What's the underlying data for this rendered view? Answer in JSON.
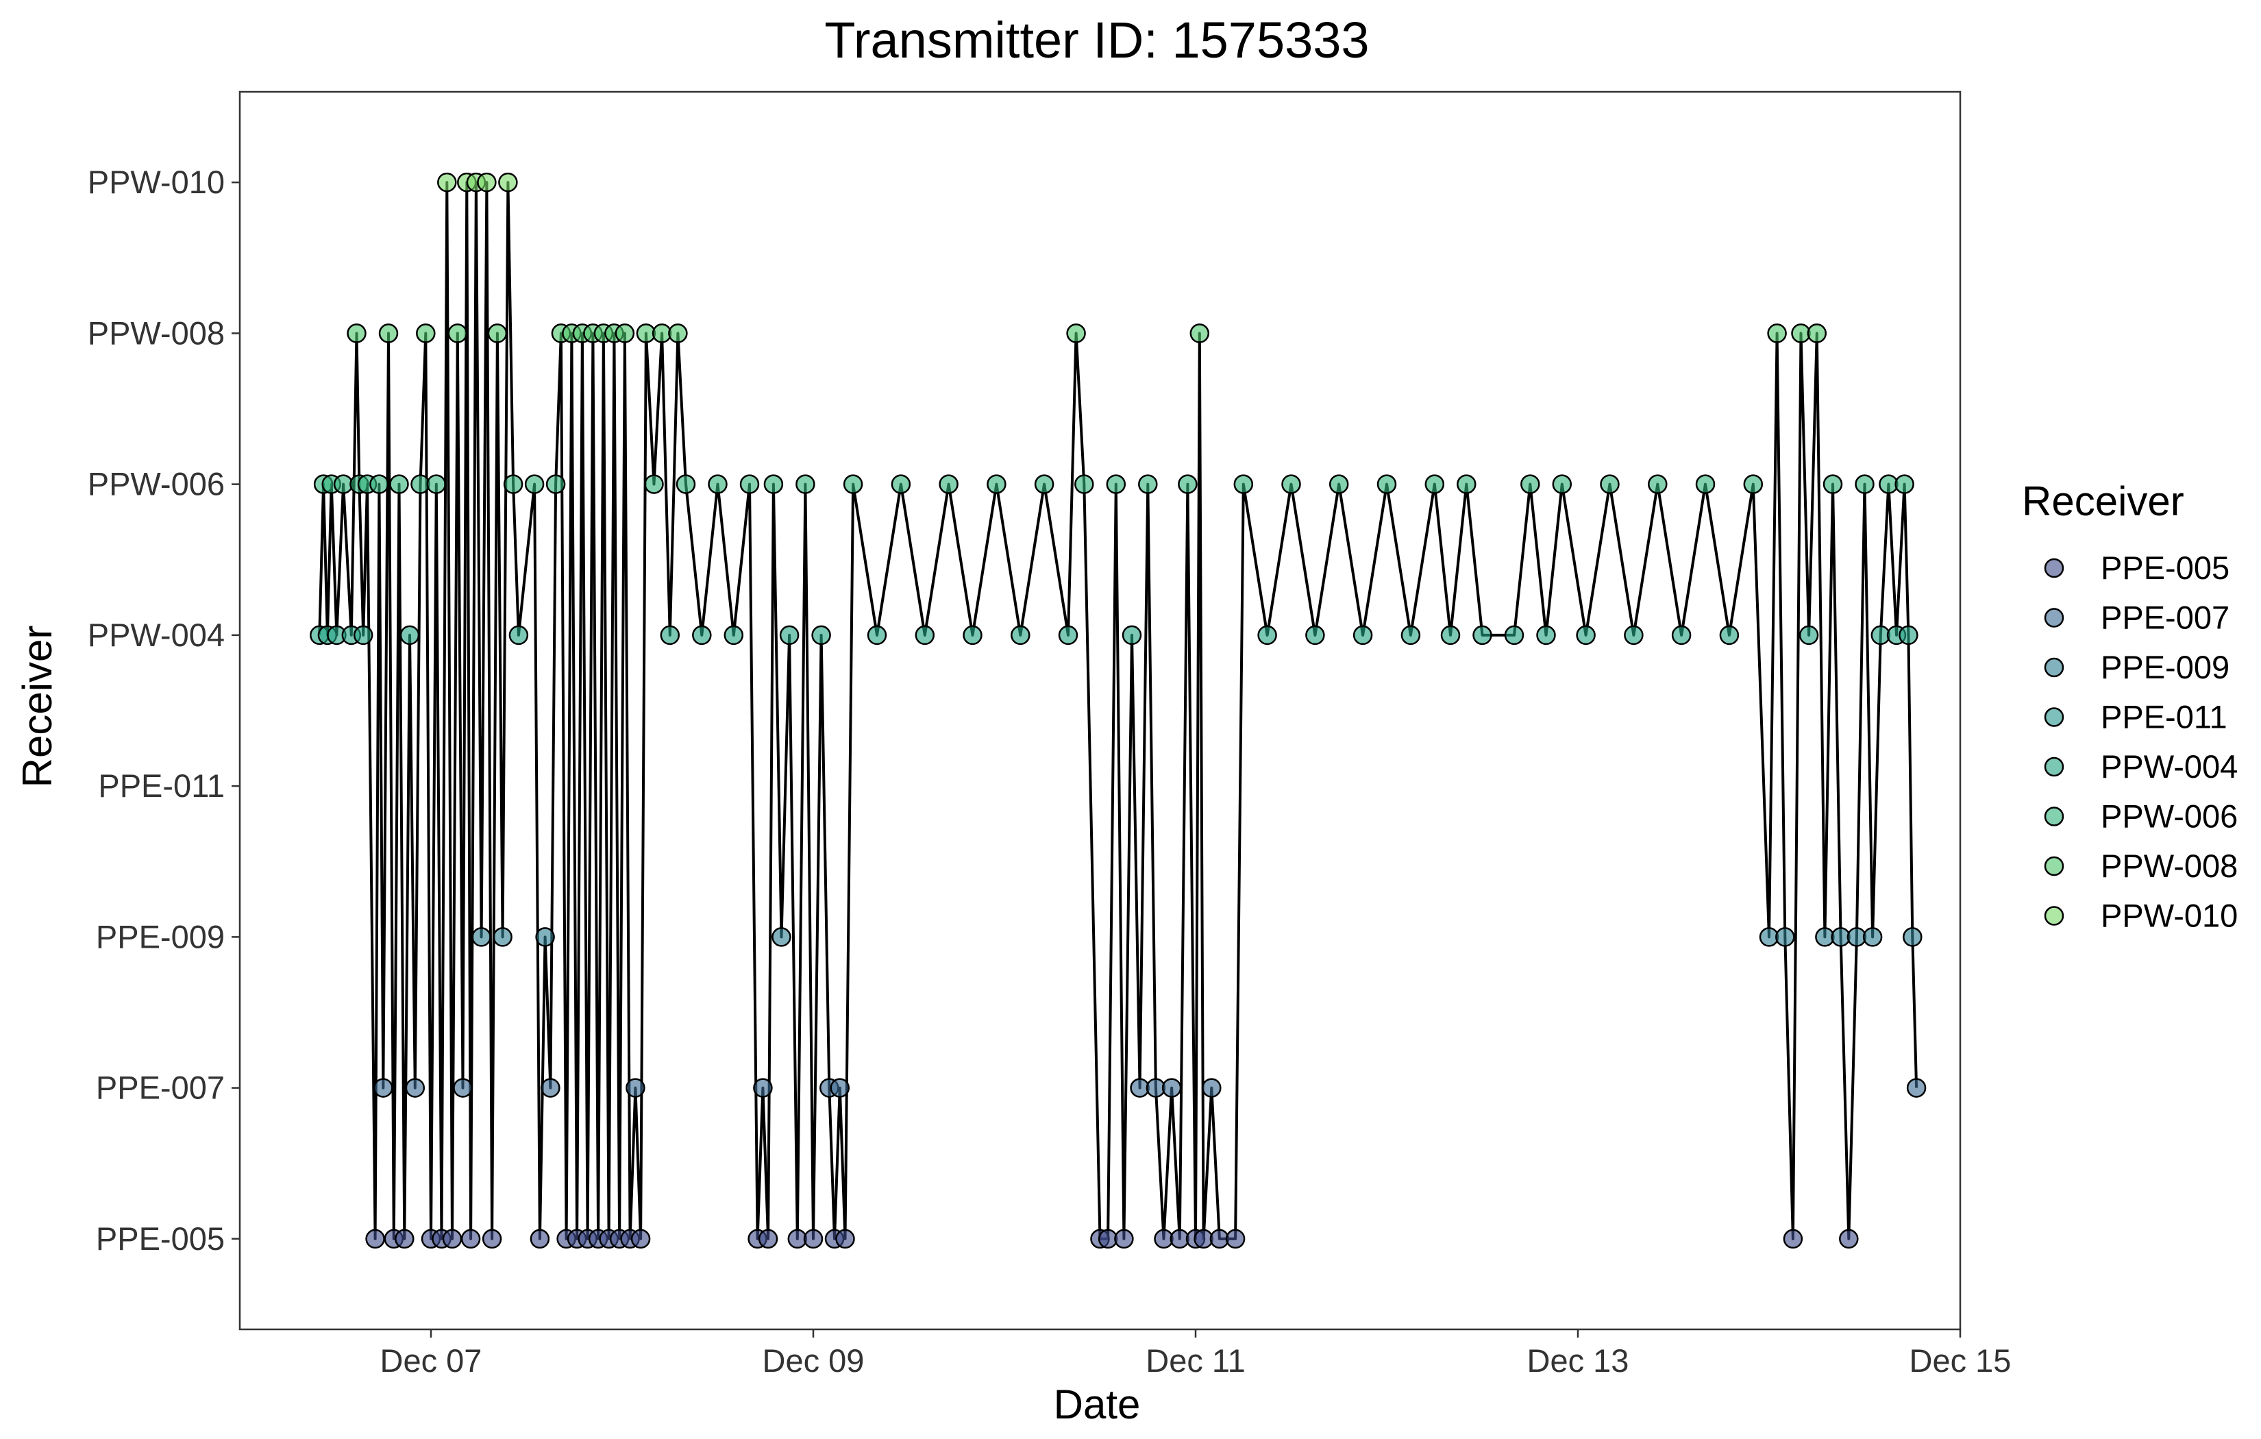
{
  "chart_data": {
    "type": "line",
    "title": "Transmitter ID: 1575333",
    "xlabel": "Date",
    "ylabel": "Receiver",
    "x_axis": {
      "scale": "date",
      "range": [
        "2023-12-06T00:00",
        "2023-12-15T00:00"
      ],
      "ticks": [
        "2023-12-07",
        "2023-12-09",
        "2023-12-11",
        "2023-12-13",
        "2023-12-15"
      ],
      "tick_labels": [
        "Dec 07",
        "Dec 09",
        "Dec 11",
        "Dec 13",
        "Dec 15"
      ]
    },
    "y_axis": {
      "scale": "categorical",
      "categories": [
        "PPE-005",
        "PPE-007",
        "PPE-009",
        "PPE-011",
        "PPW-004",
        "PPW-006",
        "PPW-008",
        "PPW-010"
      ]
    },
    "grid": false,
    "legend": {
      "title": "Receiver",
      "placement": "right",
      "entries": [
        {
          "label": "PPE-005",
          "color": "#3f4d8a"
        },
        {
          "label": "PPE-007",
          "color": "#3b6a93"
        },
        {
          "label": "PPE-009",
          "color": "#2f7f93"
        },
        {
          "label": "PPE-011",
          "color": "#25948e"
        },
        {
          "label": "PPW-004",
          "color": "#23a484"
        },
        {
          "label": "PPW-006",
          "color": "#30b27a"
        },
        {
          "label": "PPW-008",
          "color": "#4ec76a"
        },
        {
          "label": "PPW-010",
          "color": "#7ad867"
        }
      ]
    },
    "series": [
      {
        "points": [
          [
            "2023-12-06T10:00",
            "PPW-004"
          ],
          [
            "2023-12-06T10:30",
            "PPW-006"
          ],
          [
            "2023-12-06T11:00",
            "PPW-004"
          ],
          [
            "2023-12-06T11:30",
            "PPW-006"
          ],
          [
            "2023-12-06T12:10",
            "PPW-004"
          ],
          [
            "2023-12-06T13:00",
            "PPW-006"
          ],
          [
            "2023-12-06T14:00",
            "PPW-004"
          ],
          [
            "2023-12-06T14:40",
            "PPW-008"
          ],
          [
            "2023-12-06T15:00",
            "PPW-006"
          ],
          [
            "2023-12-06T15:30",
            "PPW-004"
          ],
          [
            "2023-12-06T16:00",
            "PPW-006"
          ],
          [
            "2023-12-06T17:00",
            "PPE-005"
          ],
          [
            "2023-12-06T17:30",
            "PPW-006"
          ],
          [
            "2023-12-06T18:00",
            "PPE-007"
          ],
          [
            "2023-12-06T18:40",
            "PPW-008"
          ],
          [
            "2023-12-06T19:20",
            "PPE-005"
          ],
          [
            "2023-12-06T20:00",
            "PPW-006"
          ],
          [
            "2023-12-06T20:40",
            "PPE-005"
          ],
          [
            "2023-12-06T21:20",
            "PPW-004"
          ],
          [
            "2023-12-06T22:00",
            "PPE-007"
          ],
          [
            "2023-12-06T22:40",
            "PPW-006"
          ],
          [
            "2023-12-06T23:20",
            "PPW-008"
          ],
          [
            "2023-12-07T00:00",
            "PPE-005"
          ],
          [
            "2023-12-07T00:40",
            "PPW-006"
          ],
          [
            "2023-12-07T01:20",
            "PPE-005"
          ],
          [
            "2023-12-07T02:00",
            "PPW-010"
          ],
          [
            "2023-12-07T02:40",
            "PPE-005"
          ],
          [
            "2023-12-07T03:20",
            "PPW-008"
          ],
          [
            "2023-12-07T04:00",
            "PPE-007"
          ],
          [
            "2023-12-07T04:30",
            "PPW-010"
          ],
          [
            "2023-12-07T05:00",
            "PPE-005"
          ],
          [
            "2023-12-07T05:40",
            "PPW-010"
          ],
          [
            "2023-12-07T06:20",
            "PPE-009"
          ],
          [
            "2023-12-07T07:00",
            "PPW-010"
          ],
          [
            "2023-12-07T07:40",
            "PPE-005"
          ],
          [
            "2023-12-07T08:20",
            "PPW-008"
          ],
          [
            "2023-12-07T09:00",
            "PPE-009"
          ],
          [
            "2023-12-07T09:40",
            "PPW-010"
          ],
          [
            "2023-12-07T10:20",
            "PPW-006"
          ],
          [
            "2023-12-07T11:00",
            "PPW-004"
          ],
          [
            "2023-12-07T13:00",
            "PPW-006"
          ],
          [
            "2023-12-07T13:40",
            "PPE-005"
          ],
          [
            "2023-12-07T14:20",
            "PPE-009"
          ],
          [
            "2023-12-07T15:00",
            "PPE-007"
          ],
          [
            "2023-12-07T15:40",
            "PPW-006"
          ],
          [
            "2023-12-07T16:20",
            "PPW-008"
          ],
          [
            "2023-12-07T17:00",
            "PPE-005"
          ],
          [
            "2023-12-07T17:40",
            "PPW-008"
          ],
          [
            "2023-12-07T18:20",
            "PPE-005"
          ],
          [
            "2023-12-07T19:00",
            "PPW-008"
          ],
          [
            "2023-12-07T19:40",
            "PPE-005"
          ],
          [
            "2023-12-07T20:20",
            "PPW-008"
          ],
          [
            "2023-12-07T21:00",
            "PPE-005"
          ],
          [
            "2023-12-07T21:40",
            "PPW-008"
          ],
          [
            "2023-12-07T22:20",
            "PPE-005"
          ],
          [
            "2023-12-07T23:00",
            "PPW-008"
          ],
          [
            "2023-12-07T23:40",
            "PPE-005"
          ],
          [
            "2023-12-08T00:20",
            "PPW-008"
          ],
          [
            "2023-12-08T01:00",
            "PPE-005"
          ],
          [
            "2023-12-08T01:40",
            "PPE-007"
          ],
          [
            "2023-12-08T02:20",
            "PPE-005"
          ],
          [
            "2023-12-08T03:00",
            "PPW-008"
          ],
          [
            "2023-12-08T04:00",
            "PPW-006"
          ],
          [
            "2023-12-08T05:00",
            "PPW-008"
          ],
          [
            "2023-12-08T06:00",
            "PPW-004"
          ],
          [
            "2023-12-08T07:00",
            "PPW-008"
          ],
          [
            "2023-12-08T08:00",
            "PPW-006"
          ],
          [
            "2023-12-08T10:00",
            "PPW-004"
          ],
          [
            "2023-12-08T12:00",
            "PPW-006"
          ],
          [
            "2023-12-08T14:00",
            "PPW-004"
          ],
          [
            "2023-12-08T16:00",
            "PPW-006"
          ],
          [
            "2023-12-08T17:00",
            "PPE-005"
          ],
          [
            "2023-12-08T17:40",
            "PPE-007"
          ],
          [
            "2023-12-08T18:20",
            "PPE-005"
          ],
          [
            "2023-12-08T19:00",
            "PPW-006"
          ],
          [
            "2023-12-08T20:00",
            "PPE-009"
          ],
          [
            "2023-12-08T21:00",
            "PPW-004"
          ],
          [
            "2023-12-08T22:00",
            "PPE-005"
          ],
          [
            "2023-12-08T23:00",
            "PPW-006"
          ],
          [
            "2023-12-09T00:00",
            "PPE-005"
          ],
          [
            "2023-12-09T01:00",
            "PPW-004"
          ],
          [
            "2023-12-09T02:00",
            "PPE-007"
          ],
          [
            "2023-12-09T02:40",
            "PPE-005"
          ],
          [
            "2023-12-09T03:20",
            "PPE-007"
          ],
          [
            "2023-12-09T04:00",
            "PPE-005"
          ],
          [
            "2023-12-09T05:00",
            "PPW-006"
          ],
          [
            "2023-12-09T08:00",
            "PPW-004"
          ],
          [
            "2023-12-09T11:00",
            "PPW-006"
          ],
          [
            "2023-12-09T14:00",
            "PPW-004"
          ],
          [
            "2023-12-09T17:00",
            "PPW-006"
          ],
          [
            "2023-12-09T20:00",
            "PPW-004"
          ],
          [
            "2023-12-09T23:00",
            "PPW-006"
          ],
          [
            "2023-12-10T02:00",
            "PPW-004"
          ],
          [
            "2023-12-10T05:00",
            "PPW-006"
          ],
          [
            "2023-12-10T08:00",
            "PPW-004"
          ],
          [
            "2023-12-10T09:00",
            "PPW-008"
          ],
          [
            "2023-12-10T10:00",
            "PPW-006"
          ],
          [
            "2023-12-10T12:00",
            "PPE-005"
          ],
          [
            "2023-12-10T13:00",
            "PPE-005"
          ],
          [
            "2023-12-10T14:00",
            "PPW-006"
          ],
          [
            "2023-12-10T15:00",
            "PPE-005"
          ],
          [
            "2023-12-10T16:00",
            "PPW-004"
          ],
          [
            "2023-12-10T17:00",
            "PPE-007"
          ],
          [
            "2023-12-10T18:00",
            "PPW-006"
          ],
          [
            "2023-12-10T19:00",
            "PPE-007"
          ],
          [
            "2023-12-10T20:00",
            "PPE-005"
          ],
          [
            "2023-12-10T21:00",
            "PPE-007"
          ],
          [
            "2023-12-10T22:00",
            "PPE-005"
          ],
          [
            "2023-12-10T23:00",
            "PPW-006"
          ],
          [
            "2023-12-11T00:00",
            "PPE-005"
          ],
          [
            "2023-12-11T00:30",
            "PPW-008"
          ],
          [
            "2023-12-11T01:00",
            "PPE-005"
          ],
          [
            "2023-12-11T02:00",
            "PPE-007"
          ],
          [
            "2023-12-11T03:00",
            "PPE-005"
          ],
          [
            "2023-12-11T05:00",
            "PPE-005"
          ],
          [
            "2023-12-11T06:00",
            "PPW-006"
          ],
          [
            "2023-12-11T09:00",
            "PPW-004"
          ],
          [
            "2023-12-11T12:00",
            "PPW-006"
          ],
          [
            "2023-12-11T15:00",
            "PPW-004"
          ],
          [
            "2023-12-11T18:00",
            "PPW-006"
          ],
          [
            "2023-12-11T21:00",
            "PPW-004"
          ],
          [
            "2023-12-12T00:00",
            "PPW-006"
          ],
          [
            "2023-12-12T03:00",
            "PPW-004"
          ],
          [
            "2023-12-12T06:00",
            "PPW-006"
          ],
          [
            "2023-12-12T08:00",
            "PPW-004"
          ],
          [
            "2023-12-12T10:00",
            "PPW-006"
          ],
          [
            "2023-12-12T12:00",
            "PPW-004"
          ],
          [
            "2023-12-12T16:00",
            "PPW-004"
          ],
          [
            "2023-12-12T18:00",
            "PPW-006"
          ],
          [
            "2023-12-12T20:00",
            "PPW-004"
          ],
          [
            "2023-12-12T22:00",
            "PPW-006"
          ],
          [
            "2023-12-13T01:00",
            "PPW-004"
          ],
          [
            "2023-12-13T04:00",
            "PPW-006"
          ],
          [
            "2023-12-13T07:00",
            "PPW-004"
          ],
          [
            "2023-12-13T10:00",
            "PPW-006"
          ],
          [
            "2023-12-13T13:00",
            "PPW-004"
          ],
          [
            "2023-12-13T16:00",
            "PPW-006"
          ],
          [
            "2023-12-13T19:00",
            "PPW-004"
          ],
          [
            "2023-12-13T22:00",
            "PPW-006"
          ],
          [
            "2023-12-14T00:00",
            "PPE-009"
          ],
          [
            "2023-12-14T01:00",
            "PPW-008"
          ],
          [
            "2023-12-14T02:00",
            "PPE-009"
          ],
          [
            "2023-12-14T03:00",
            "PPE-005"
          ],
          [
            "2023-12-14T04:00",
            "PPW-008"
          ],
          [
            "2023-12-14T05:00",
            "PPW-004"
          ],
          [
            "2023-12-14T06:00",
            "PPW-008"
          ],
          [
            "2023-12-14T07:00",
            "PPE-009"
          ],
          [
            "2023-12-14T08:00",
            "PPW-006"
          ],
          [
            "2023-12-14T09:00",
            "PPE-009"
          ],
          [
            "2023-12-14T10:00",
            "PPE-005"
          ],
          [
            "2023-12-14T11:00",
            "PPE-009"
          ],
          [
            "2023-12-14T12:00",
            "PPW-006"
          ],
          [
            "2023-12-14T13:00",
            "PPE-009"
          ],
          [
            "2023-12-14T14:00",
            "PPW-004"
          ],
          [
            "2023-12-14T15:00",
            "PPW-006"
          ],
          [
            "2023-12-14T16:00",
            "PPW-004"
          ],
          [
            "2023-12-14T17:00",
            "PPW-006"
          ],
          [
            "2023-12-14T17:30",
            "PPW-004"
          ],
          [
            "2023-12-14T18:00",
            "PPE-009"
          ],
          [
            "2023-12-14T18:30",
            "PPE-007"
          ]
        ]
      }
    ]
  }
}
